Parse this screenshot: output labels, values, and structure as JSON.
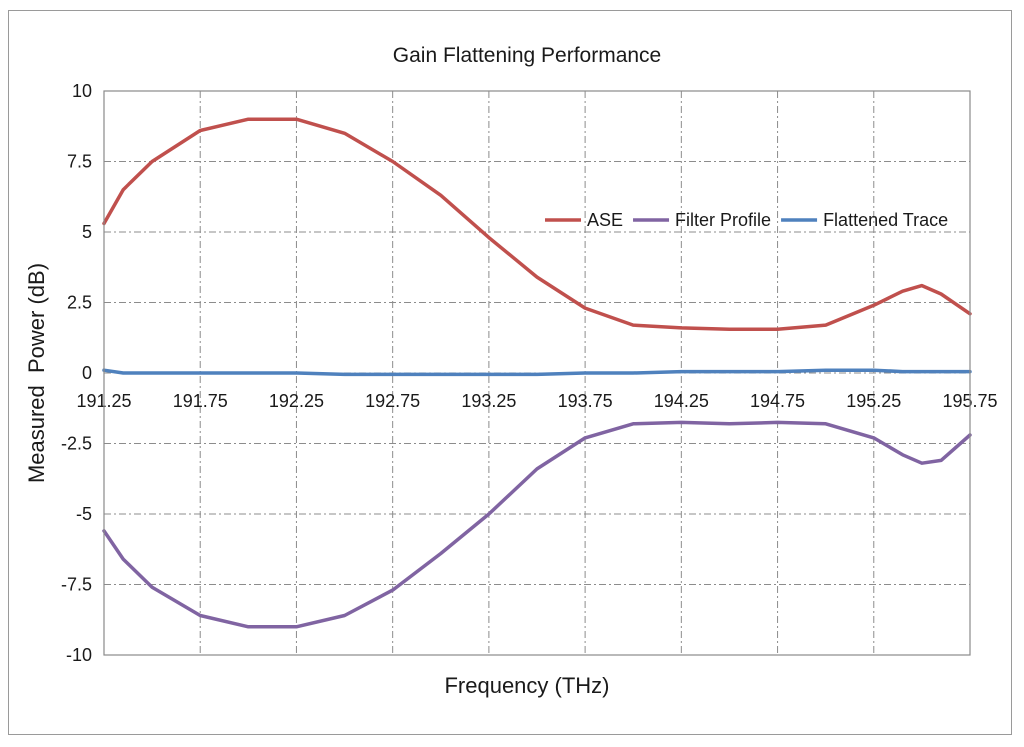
{
  "chart_data": {
    "type": "line",
    "title": "Gain Flattening Performance",
    "xlabel": "Frequency (THz)",
    "ylabel": "Measured  Power (dB)",
    "xlim": [
      191.25,
      195.75
    ],
    "ylim": [
      -10,
      10
    ],
    "x_ticks": [
      "191.25",
      "191.75",
      "192.25",
      "192.75",
      "193.25",
      "193.75",
      "194.25",
      "194.75",
      "195.25",
      "195.75"
    ],
    "y_ticks": [
      "10",
      "7.5",
      "5",
      "2.5",
      "0",
      "-2.5",
      "-5",
      "-7.5",
      "-10"
    ],
    "grid": true,
    "legend_position": "right",
    "x": [
      191.25,
      191.35,
      191.5,
      191.75,
      192.0,
      192.25,
      192.5,
      192.75,
      193.0,
      193.25,
      193.5,
      193.75,
      194.0,
      194.25,
      194.5,
      194.75,
      195.0,
      195.25,
      195.4,
      195.5,
      195.6,
      195.75
    ],
    "series": [
      {
        "name": "ASE",
        "color": "#c0504d",
        "values": [
          5.3,
          6.5,
          7.5,
          8.6,
          9.0,
          9.0,
          8.5,
          7.5,
          6.3,
          4.8,
          3.4,
          2.3,
          1.7,
          1.6,
          1.55,
          1.55,
          1.7,
          2.4,
          2.9,
          3.1,
          2.8,
          2.1
        ]
      },
      {
        "name": "Filter Profile",
        "color": "#8064a2",
        "values": [
          -5.6,
          -6.6,
          -7.6,
          -8.6,
          -9.0,
          -9.0,
          -8.6,
          -7.7,
          -6.4,
          -5.0,
          -3.4,
          -2.3,
          -1.8,
          -1.75,
          -1.8,
          -1.75,
          -1.8,
          -2.3,
          -2.9,
          -3.2,
          -3.1,
          -2.2
        ]
      },
      {
        "name": "Flattened Trace",
        "color": "#4f81bd",
        "values": [
          0.1,
          0.0,
          0.0,
          0.0,
          0.0,
          0.0,
          -0.05,
          -0.05,
          -0.05,
          -0.05,
          -0.05,
          0.0,
          0.0,
          0.05,
          0.05,
          0.05,
          0.1,
          0.1,
          0.05,
          0.05,
          0.05,
          0.05
        ]
      }
    ]
  }
}
